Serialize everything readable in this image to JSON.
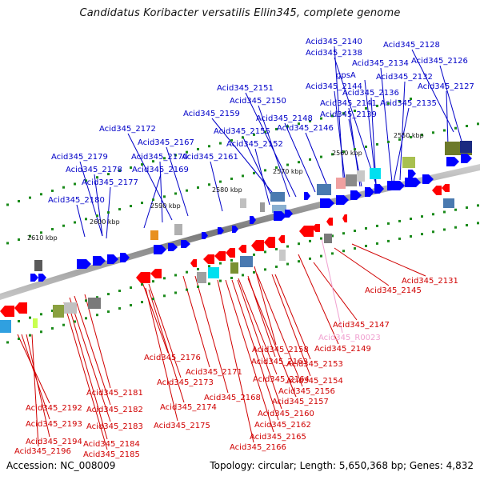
{
  "title": "Candidatus Koribacter versatilis Ellin345, complete genome",
  "footer": {
    "accession": "Accession: NC_008009",
    "topology": "Topology: circular; Length: 5,650,368 bp; Genes: 4,832"
  },
  "colors": {
    "top_label": "#0000c8",
    "bottom_label": "#d00000",
    "rna_label": "#f0a0d0",
    "top_gene": "#0000ff",
    "bottom_gene": "#ff0000",
    "axis": "#888888"
  },
  "kbp_ticks": [
    {
      "label": "2550 kbp"
    },
    {
      "label": "2560 kbp"
    },
    {
      "label": "2570 kbp"
    },
    {
      "label": "2580 kbp"
    },
    {
      "label": "2590 kbp"
    },
    {
      "label": "2600 kbp"
    },
    {
      "label": "2610 kbp"
    }
  ],
  "top_labels": [
    "Acid345_2140",
    "Acid345_2128",
    "Acid345_2138",
    "Acid345_2126",
    "Acid345_2134",
    "gpsA",
    "Acid345_2132",
    "Acid345_2144",
    "Acid345_2127",
    "Acid345_2151",
    "Acid345_2136",
    "Acid345_2150",
    "Acid345_2141",
    "Acid345_2135",
    "Acid345_2159",
    "Acid345_2139",
    "Acid345_2148",
    "Acid345_2146",
    "Acid345_2172",
    "Acid345_2155",
    "Acid345_2167",
    "Acid345_2152",
    "Acid345_2179",
    "Acid345_2170",
    "Acid345_2161",
    "Acid345_2178",
    "Acid345_2169",
    "Acid345_2177",
    "Acid345_2180"
  ],
  "bottom_labels": [
    "Acid345_2131",
    "Acid345_2145",
    "Acid345_2147",
    "Acid345_R0023",
    "Acid345_2158",
    "Acid345_2149",
    "Acid345_2176",
    "Acid345_2163",
    "Acid345_2153",
    "Acid345_2171",
    "Acid345_2173",
    "Acid345_2164",
    "Acid345_2154",
    "Acid345_2181",
    "Acid345_2156",
    "Acid345_2168",
    "Acid345_2157",
    "Acid345_2192",
    "Acid345_2182",
    "Acid345_2174",
    "Acid345_2160",
    "Acid345_2193",
    "Acid345_2183",
    "Acid345_2175",
    "Acid345_2162",
    "Acid345_2165",
    "Acid345_2194",
    "Acid345_2184",
    "Acid345_2166",
    "Acid345_2196",
    "Acid345_2185"
  ]
}
